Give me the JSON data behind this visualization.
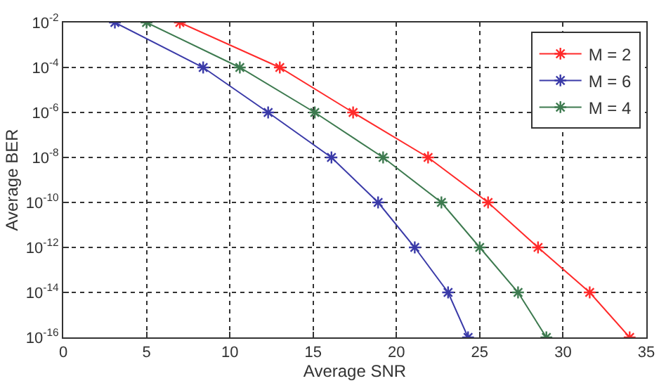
{
  "chart_data": {
    "type": "line",
    "xlabel": "Average SNR",
    "ylabel": "Average BER",
    "log": "y",
    "grid": true,
    "legend": "top right",
    "marker": "cross",
    "line_style": "solid",
    "xlim": [
      0,
      35
    ],
    "xticks": [
      0,
      5,
      10,
      15,
      20,
      25,
      30,
      35
    ],
    "ylim": [
      1e-16,
      0.01
    ],
    "yticks": [
      {
        "value": 1e-16,
        "label": "10$^{-16}$"
      },
      {
        "value": 1e-14,
        "label": "10$^{-14}$"
      },
      {
        "value": 1e-12,
        "label": "10$^{-12}$"
      },
      {
        "value": 1e-10,
        "label": "10$^{-10}$"
      },
      {
        "value": 1e-08,
        "label": "10$^{-8}$"
      },
      {
        "value": 1e-06,
        "label": "10$^{-6}$"
      },
      {
        "value": 0.0001,
        "label": "10$^{-4}$"
      },
      {
        "value": 0.01,
        "label": "10$^{-2}$"
      }
    ],
    "series": [
      {
        "name": "M = 2",
        "color": "#ff2a2a",
        "x": [
          7.0,
          13.0,
          17.4,
          21.9,
          25.5,
          28.5,
          31.6,
          34.0
        ],
        "values": [
          0.01,
          0.0001,
          1e-06,
          1e-08,
          1e-10,
          1e-12,
          1e-14,
          1e-16
        ]
      },
      {
        "name": "M = 6",
        "color": "#3a3aa8",
        "x": [
          3.1,
          8.4,
          12.3,
          16.1,
          18.9,
          21.1,
          23.1,
          24.3
        ],
        "values": [
          0.01,
          0.0001,
          1e-06,
          1e-08,
          1e-10,
          1e-12,
          1e-14,
          1e-16
        ]
      },
      {
        "name": "M = 4",
        "color": "#3d7a4f",
        "x": [
          5.0,
          10.6,
          15.1,
          19.2,
          22.7,
          25.0,
          27.3,
          29.0
        ],
        "values": [
          0.01,
          0.0001,
          1e-06,
          1e-08,
          1e-10,
          1e-12,
          1e-14,
          1e-16
        ]
      }
    ]
  }
}
